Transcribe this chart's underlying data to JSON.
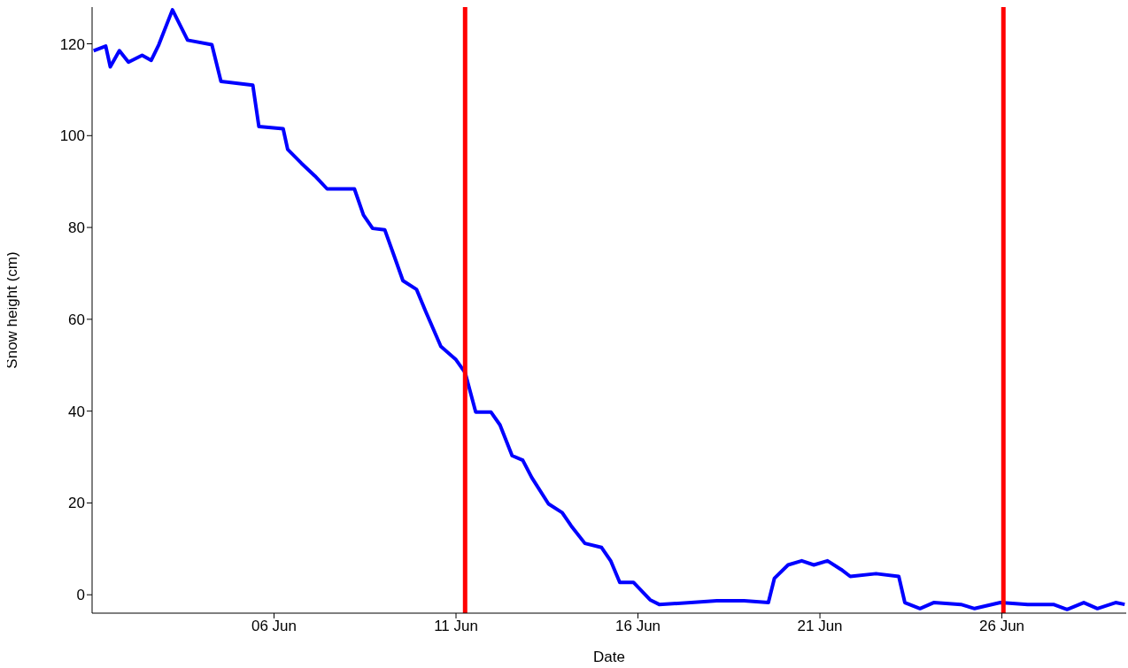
{
  "chart_data": {
    "type": "line",
    "xlabel": "Date",
    "ylabel": "Snow height (cm)",
    "x": [
      "--06-01T01:00",
      "--06-01T09:00",
      "--06-01T12:00",
      "--06-01T18:00",
      "--06-02T00:00",
      "--06-02T09:00",
      "--06-02T15:00",
      "--06-02T20:00",
      "--06-03T05:00",
      "--06-03T15:00",
      "--06-04T07:00",
      "--06-04T13:00",
      "--06-05T10:00",
      "--06-05T14:00",
      "--06-06T06:00",
      "--06-06T09:00",
      "--06-06T18:00",
      "--06-07T03:00",
      "--06-07T11:00",
      "--06-08T05:00",
      "--06-08T11:00",
      "--06-08T17:00",
      "--06-09T01:00",
      "--06-09T07:00",
      "--06-09T13:00",
      "--06-09T22:00",
      "--06-10T04:00",
      "--06-10T14:00",
      "--06-11T00:00",
      "--06-11T06:00",
      "--06-11T13:00",
      "--06-11T23:00",
      "--06-12T05:00",
      "--06-12T13:00",
      "--06-12T20:00",
      "--06-13T02:00",
      "--06-13T13:00",
      "--06-13T22:00",
      "--06-14T04:00",
      "--06-14T13:00",
      "--06-15T00:00",
      "--06-15T06:00",
      "--06-15T12:00",
      "--06-15T21:00",
      "--06-16T08:00",
      "--06-16T14:00",
      "--06-17T11:00",
      "--06-18T04:00",
      "--06-18T22:00",
      "--06-19T14:00",
      "--06-19T18:00",
      "--06-20T03:00",
      "--06-20T12:00",
      "--06-20T20:00",
      "--06-21T05:00",
      "--06-21T14:00",
      "--06-21T20:00",
      "--06-22T13:00",
      "--06-23T04:00",
      "--06-23T08:00",
      "--06-23T18:00",
      "--06-24T03:00",
      "--06-24T21:00",
      "--06-25T06:00",
      "--06-25T23:00",
      "--06-26T17:00",
      "--06-27T10:00",
      "--06-27T19:00",
      "--06-28T06:00",
      "--06-28T15:00",
      "--06-29T03:00",
      "--06-29T09:00"
    ],
    "series": [
      {
        "color": "#0000ff",
        "values": [
          118.5,
          119.5,
          115,
          118.5,
          116,
          117.5,
          116.4,
          119.8,
          127.4,
          120.8,
          119.8,
          111.8,
          111,
          102,
          101.5,
          97,
          94,
          91.2,
          88.4,
          88.4,
          82.7,
          79.8,
          79.5,
          74,
          68.4,
          66.5,
          61.7,
          54.1,
          51.2,
          48.4,
          39.8,
          39.8,
          37,
          30.3,
          29.3,
          25.5,
          19.8,
          17.9,
          15,
          11.2,
          10.3,
          7.4,
          2.7,
          2.7,
          -1.1,
          -2.1,
          -1.7,
          -1.3,
          -1.3,
          -1.7,
          3.6,
          6.5,
          7.4,
          6.5,
          7.4,
          5.5,
          4,
          4.6,
          4,
          -1.7,
          -3,
          -1.7,
          -2.1,
          -3,
          -1.7,
          -2.1,
          -2.1,
          -3.2,
          -1.7,
          -3,
          -1.7,
          -2.1
        ]
      }
    ],
    "xlim": [
      "--06-01T00:00",
      "--06-29T10:00"
    ],
    "xticks": [
      {
        "value": "--06-06",
        "label": "06 Jun"
      },
      {
        "value": "--06-11",
        "label": "11 Jun"
      },
      {
        "value": "--06-16",
        "label": "16 Jun"
      },
      {
        "value": "--06-21",
        "label": "21 Jun"
      },
      {
        "value": "--06-26",
        "label": "26 Jun"
      }
    ],
    "ylim": [
      -4,
      128
    ],
    "yticks": [
      0,
      20,
      40,
      60,
      80,
      100,
      120
    ],
    "ref_lines": [
      {
        "axis": "x",
        "value": "--06-11T06:00",
        "color": "#ff0000"
      },
      {
        "axis": "x",
        "value": "--06-26T01:00",
        "color": "#ff0000"
      }
    ],
    "grid": false,
    "legend": false,
    "marker": "none",
    "line_style": "solid"
  }
}
